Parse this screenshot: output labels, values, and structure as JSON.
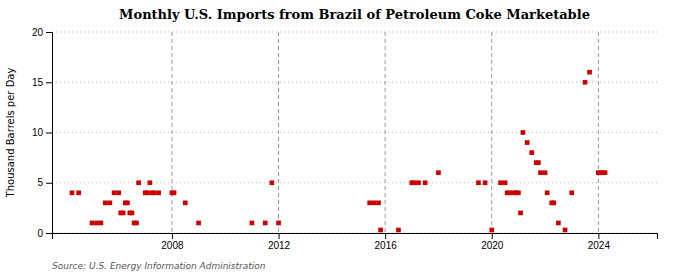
{
  "chart_data": {
    "type": "scatter",
    "title": "Monthly U.S. Imports from Brazil of Petroleum Coke Marketable",
    "ylabel": "Thousand Barrels per Day",
    "source": "Source: U.S. Energy Information Administration",
    "color": "#cc0000",
    "marker": "square",
    "grid": true,
    "xlim": [
      2003.5,
      2026.2
    ],
    "xticks": [
      2008,
      2012,
      2016,
      2020,
      2024
    ],
    "ylim": [
      0,
      20
    ],
    "yticks": [
      0,
      5,
      10,
      15,
      20
    ],
    "x": [
      2004.25,
      2004.5,
      2005.0,
      2005.17,
      2005.33,
      2005.5,
      2005.67,
      2005.83,
      2006.0,
      2006.08,
      2006.17,
      2006.25,
      2006.33,
      2006.42,
      2006.5,
      2006.58,
      2006.67,
      2006.75,
      2007.0,
      2007.08,
      2007.17,
      2007.25,
      2007.33,
      2007.5,
      2008.0,
      2008.08,
      2008.5,
      2009.0,
      2011.0,
      2011.5,
      2011.75,
      2012.0,
      2015.42,
      2015.58,
      2015.75,
      2015.83,
      2016.5,
      2017.0,
      2017.08,
      2017.25,
      2017.5,
      2018.0,
      2019.5,
      2019.75,
      2020.0,
      2020.33,
      2020.5,
      2020.58,
      2020.67,
      2020.83,
      2020.92,
      2021.0,
      2021.08,
      2021.17,
      2021.33,
      2021.5,
      2021.67,
      2021.75,
      2021.83,
      2022.0,
      2022.08,
      2022.25,
      2022.33,
      2022.5,
      2022.75,
      2023.0,
      2023.5,
      2023.67,
      2024.0,
      2024.08,
      2024.17,
      2024.25
    ],
    "values": [
      4,
      4,
      1,
      1,
      1,
      3,
      3,
      4,
      4,
      2,
      2,
      3,
      3,
      2,
      2,
      1,
      1,
      5,
      4,
      4,
      5,
      4,
      4,
      4,
      4,
      4,
      3,
      1,
      1,
      1,
      5,
      1,
      3,
      3,
      3,
      0.3,
      0.3,
      5,
      5,
      5,
      5,
      6,
      5,
      5,
      0.3,
      5,
      5,
      4,
      4,
      4,
      4,
      4,
      2,
      10,
      9,
      8,
      7,
      7,
      6,
      6,
      4,
      3,
      3,
      1,
      0.3,
      4,
      15,
      16,
      6,
      6,
      6,
      6
    ]
  }
}
